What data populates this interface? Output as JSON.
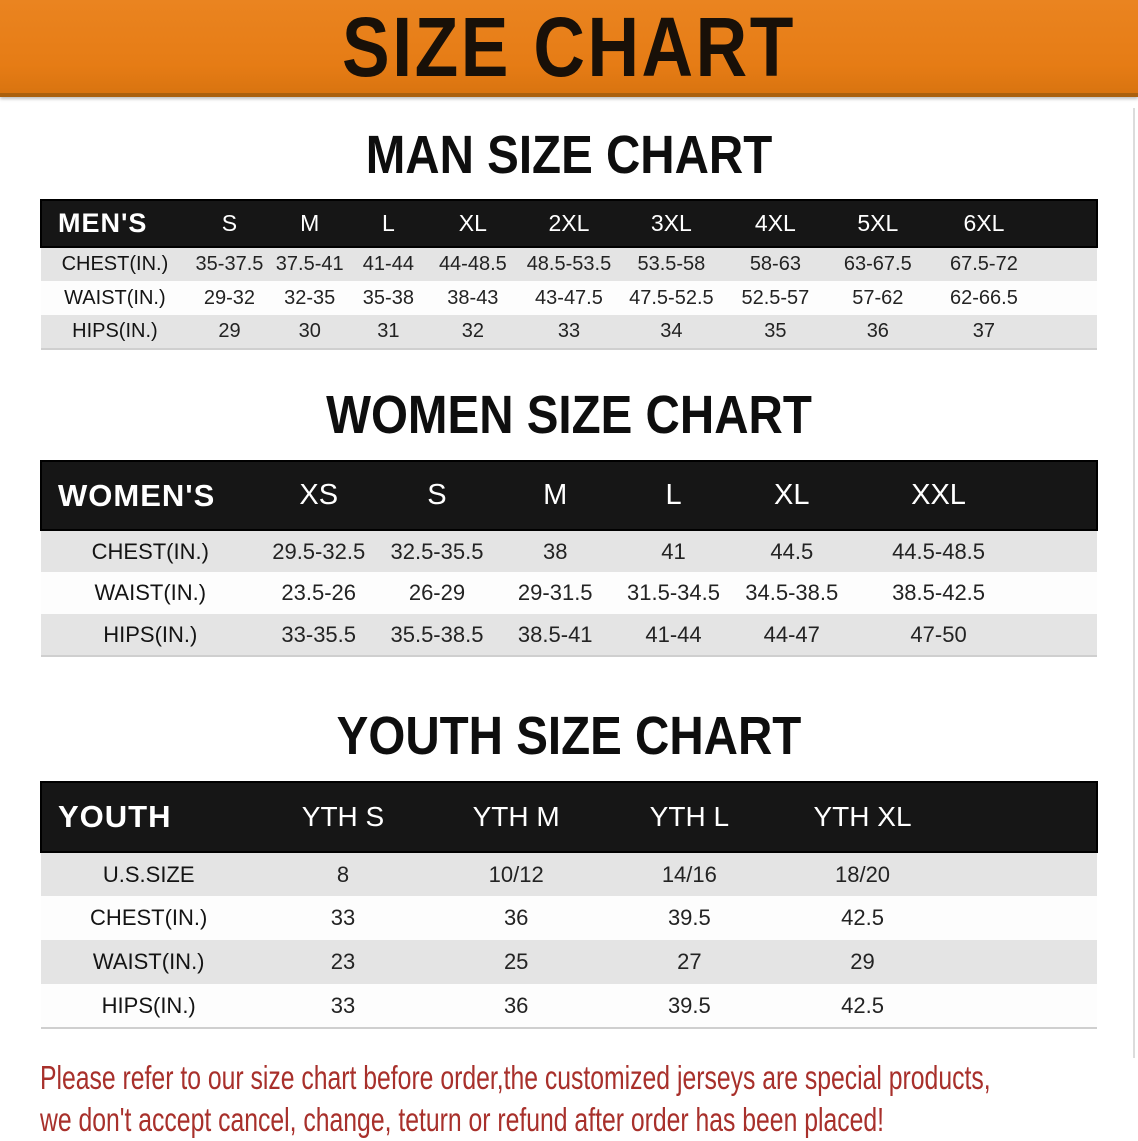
{
  "banner": {
    "title": "SIZE CHART"
  },
  "colors": {
    "banner_orange": "#E67C15",
    "header_bar_black": "#161616",
    "stripe_gray": "#E4E4E4",
    "disclaimer_red": "#A8302B"
  },
  "sections": {
    "men": {
      "title": "MAN SIZE CHART",
      "table": {
        "header": [
          "MEN'S",
          "S",
          "M",
          "L",
          "XL",
          "2XL",
          "3XL",
          "4XL",
          "5XL",
          "6XL"
        ],
        "rows": [
          {
            "label": "CHEST(IN.)",
            "values": [
              "35-37.5",
              "37.5-41",
              "41-44",
              "44-48.5",
              "48.5-53.5",
              "53.5-58",
              "58-63",
              "63-67.5",
              "67.5-72"
            ]
          },
          {
            "label": "WAIST(IN.)",
            "values": [
              "29-32",
              "32-35",
              "35-38",
              "38-43",
              "43-47.5",
              "47.5-52.5",
              "52.5-57",
              "57-62",
              "62-66.5"
            ]
          },
          {
            "label": "HIPS(IN.)",
            "values": [
              "29",
              "30",
              "31",
              "32",
              "33",
              "34",
              "35",
              "36",
              "37"
            ]
          }
        ]
      }
    },
    "women": {
      "title": "WOMEN SIZE CHART",
      "table": {
        "header": [
          "WOMEN'S",
          "XS",
          "S",
          "M",
          "L",
          "XL",
          "XXL"
        ],
        "rows": [
          {
            "label": "CHEST(IN.)",
            "values": [
              "29.5-32.5",
              "32.5-35.5",
              "38",
              "41",
              "44.5",
              "44.5-48.5"
            ]
          },
          {
            "label": "WAIST(IN.)",
            "values": [
              "23.5-26",
              "26-29",
              "29-31.5",
              "31.5-34.5",
              "34.5-38.5",
              "38.5-42.5"
            ]
          },
          {
            "label": "HIPS(IN.)",
            "values": [
              "33-35.5",
              "35.5-38.5",
              "38.5-41",
              "41-44",
              "44-47",
              "47-50"
            ]
          }
        ]
      }
    },
    "youth": {
      "title": "YOUTH SIZE CHART",
      "table": {
        "header": [
          "YOUTH",
          "YTH S",
          "YTH M",
          "YTH L",
          "YTH XL"
        ],
        "rows": [
          {
            "label": "U.S.SIZE",
            "values": [
              "8",
              "10/12",
              "14/16",
              "18/20"
            ]
          },
          {
            "label": "CHEST(IN.)",
            "values": [
              "33",
              "36",
              "39.5",
              "42.5"
            ]
          },
          {
            "label": "WAIST(IN.)",
            "values": [
              "23",
              "25",
              "27",
              "29"
            ]
          },
          {
            "label": "HIPS(IN.)",
            "values": [
              "33",
              "36",
              "39.5",
              "42.5"
            ]
          }
        ]
      }
    }
  },
  "disclaimer": {
    "line1": "Please refer to our size chart before order,the customized jerseys are special products,",
    "line2": "we don't accept cancel, change, teturn or refund after order has been placed!"
  }
}
